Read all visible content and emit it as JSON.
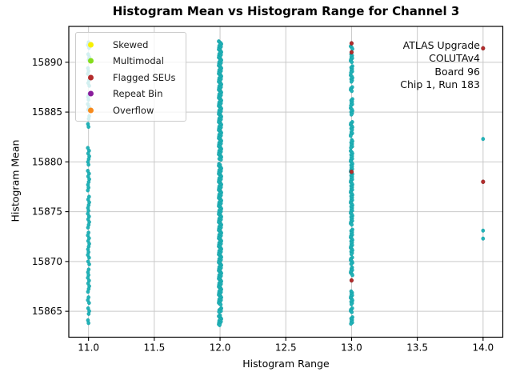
{
  "chart_data": {
    "type": "scatter",
    "title": "Histogram Mean vs Histogram Range for Channel 3",
    "xlabel": "Histogram Range",
    "ylabel": "Histogram Mean",
    "xlim": [
      10.85,
      14.15
    ],
    "ylim": [
      15862.4,
      15893.6
    ],
    "xticks": [
      11.0,
      11.5,
      12.0,
      12.5,
      13.0,
      13.5,
      14.0
    ],
    "xtick_labels": [
      "11.0",
      "11.5",
      "12.0",
      "12.5",
      "13.0",
      "13.5",
      "14.0"
    ],
    "yticks": [
      15865,
      15870,
      15875,
      15880,
      15885,
      15890
    ],
    "ytick_labels": [
      "15865",
      "15870",
      "15875",
      "15880",
      "15885",
      "15890"
    ],
    "grid": true,
    "grid_color": "#c9c9c9",
    "normal_point_color": "#22b3b8",
    "flagged_point_color": "#b42c2c",
    "legend": {
      "position": "upper left",
      "entries": [
        {
          "label": "Skewed",
          "color": "#f7f000"
        },
        {
          "label": "Multimodal",
          "color": "#85dd1c"
        },
        {
          "label": "Flagged SEUs",
          "color": "#b42c2c"
        },
        {
          "label": "Repeat Bin",
          "color": "#8a1d9c"
        },
        {
          "label": "Overflow",
          "color": "#f78a1d"
        }
      ]
    },
    "annotation": {
      "lines": [
        "ATLAS Upgrade",
        "COLUTAv4",
        "Board 96",
        "Chip 1, Run 183"
      ]
    },
    "series": {
      "normal_runs": [
        {
          "x": 11,
          "step": 0.28,
          "runs": [
            [
              15892.0,
              15891.2
            ],
            [
              15890.8,
              15890.2
            ],
            [
              15889.4,
              15888.8
            ],
            [
              15888.2,
              15887.5
            ],
            [
              15886.8,
              15886.2
            ],
            [
              15885.8,
              15885.2
            ],
            [
              15884.6,
              15884.1
            ],
            [
              15883.8,
              15883.3
            ],
            [
              15881.4,
              15879.6
            ],
            [
              15879.1,
              15877.0
            ],
            [
              15876.5,
              15875.0
            ],
            [
              15874.8,
              15873.2
            ],
            [
              15872.9,
              15870.3
            ],
            [
              15870.0,
              15869.5
            ],
            [
              15869.2,
              15866.7
            ],
            [
              15866.4,
              15865.8
            ],
            [
              15865.3,
              15864.5
            ],
            [
              15864.1,
              15863.6
            ]
          ]
        },
        {
          "x": 12,
          "step": 0.09,
          "runs": [
            [
              15892.1,
              15880.2
            ],
            [
              15879.8,
              15865.6
            ],
            [
              15865.3,
              15864.9
            ],
            [
              15864.6,
              15863.6
            ]
          ]
        },
        {
          "x": 13,
          "step": 0.13,
          "runs": [
            [
              15891.6,
              15891.3
            ],
            [
              15890.8,
              15889.9
            ],
            [
              15889.6,
              15888.9
            ],
            [
              15888.7,
              15888.0
            ],
            [
              15887.5,
              15887.0
            ],
            [
              15886.3,
              15885.6
            ],
            [
              15885.4,
              15884.7
            ],
            [
              15884.0,
              15883.2
            ],
            [
              15883.0,
              15882.5
            ],
            [
              15882.2,
              15881.4
            ],
            [
              15881.1,
              15873.6
            ],
            [
              15873.2,
              15870.7
            ],
            [
              15870.4,
              15869.7
            ],
            [
              15869.4,
              15868.5
            ],
            [
              15867.0,
              15865.7
            ],
            [
              15865.3,
              15864.9
            ],
            [
              15864.4,
              15863.7
            ]
          ]
        }
      ],
      "normal_points": [
        [
          14,
          15882.3
        ],
        [
          14,
          15873.1
        ],
        [
          14,
          15872.3
        ]
      ],
      "flagged_seus_points": [
        [
          13,
          15891.9
        ],
        [
          13,
          15891.0
        ],
        [
          13,
          15879.0
        ],
        [
          13,
          15868.1
        ],
        [
          14,
          15891.4
        ],
        [
          14,
          15878.0
        ]
      ]
    }
  }
}
